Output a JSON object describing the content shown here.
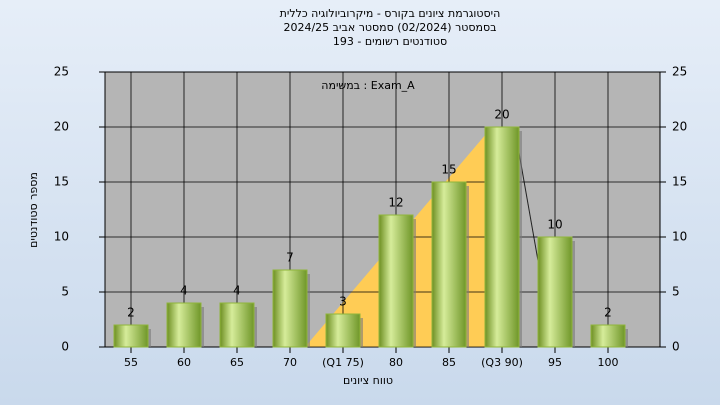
{
  "chart_data": {
    "type": "bar",
    "title_lines": [
      "היסטוגרמת ציונים בקורס - מיקרוביולוגיה כללית",
      "בסמסטר  (02/2024)  סמסטר אביב 2024/25",
      "סטודנטים רשומים - 193"
    ],
    "annotation": "במשימה : Exam_A",
    "x_label": "טווח ציונים",
    "y_label": "מספר סטודנטים",
    "categories": [
      "55",
      "60",
      "65",
      "70",
      "(Q1 75)",
      "80",
      "85",
      "(Q3 90)",
      "95",
      "100"
    ],
    "values": [
      2,
      4,
      4,
      7,
      3,
      12,
      15,
      20,
      10,
      2
    ],
    "color": "#8fb53a",
    "ylim": [
      0,
      25
    ],
    "yticks": [
      0,
      5,
      10,
      15,
      20,
      25
    ],
    "y2lim": [
      0,
      25
    ],
    "y2ticks": [
      0,
      5,
      10,
      15,
      20,
      25
    ],
    "grid": true
  }
}
